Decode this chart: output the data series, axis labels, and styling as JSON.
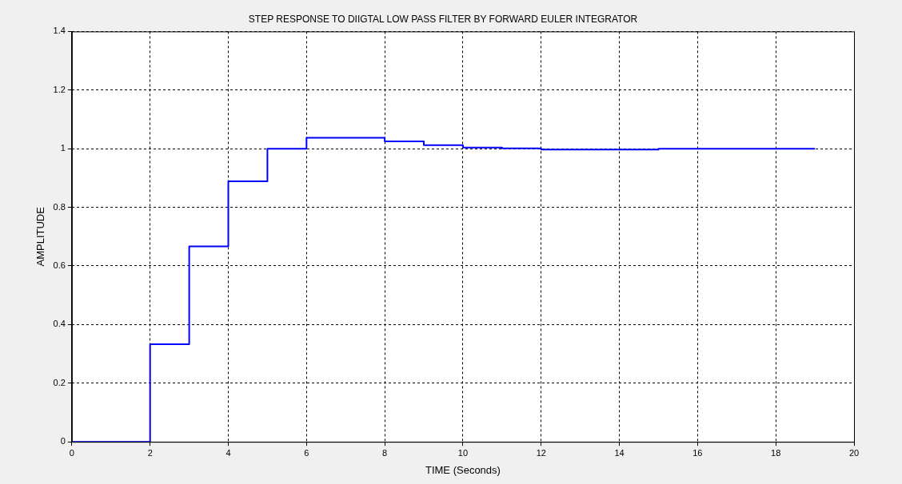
{
  "chart_data": {
    "type": "step",
    "title": "STEP RESPONSE TO DIIGTAL LOW PASS FILTER BY FORWARD EULER INTEGRATOR",
    "xlabel": "TIME (Seconds)",
    "ylabel": "AMPLITUDE",
    "x": [
      0,
      1,
      2,
      3,
      4,
      5,
      6,
      7,
      8,
      9,
      10,
      11,
      12,
      13,
      14,
      15,
      16,
      17,
      18,
      19
    ],
    "series": [
      {
        "color": "#0000ff",
        "values": [
          0,
          0,
          0.333,
          0.667,
          0.889,
          1.0,
          1.037,
          1.037,
          1.025,
          1.012,
          1.004,
          1.001,
          0.997,
          0.997,
          0.997,
          1.0,
          1.0,
          1.0,
          1.0,
          1.0
        ]
      }
    ],
    "xlim": [
      0,
      20
    ],
    "xticks": [
      0,
      2,
      4,
      6,
      8,
      10,
      12,
      14,
      16,
      18,
      20
    ],
    "ylim": [
      0,
      1.4
    ],
    "yticks": [
      0,
      0.2,
      0.4,
      0.6,
      0.8,
      1,
      1.2,
      1.4
    ],
    "grid": true,
    "legend": false,
    "marker": "none",
    "line_style": "solid"
  }
}
